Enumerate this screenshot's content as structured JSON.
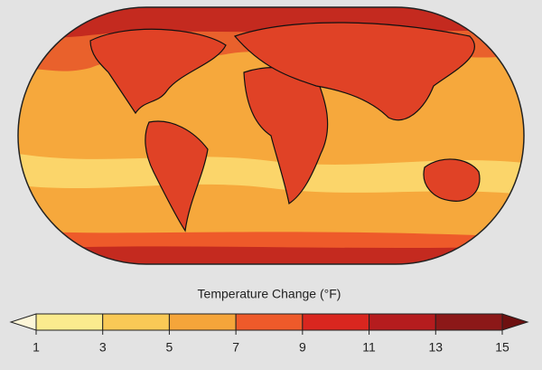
{
  "legend": {
    "title": "Temperature Change (°F)",
    "ticks": [
      1,
      3,
      5,
      7,
      9,
      11,
      13,
      15
    ],
    "colors": [
      "#fbeb8e",
      "#f9c956",
      "#f5a53a",
      "#ee5a2a",
      "#d9261f",
      "#b51c1e",
      "#8c1818"
    ],
    "under_color": "#fdf6d8",
    "over_color": "#6e1010"
  }
}
